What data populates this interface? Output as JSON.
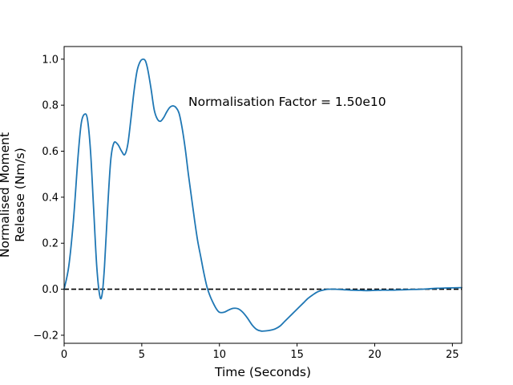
{
  "chart_data": {
    "type": "line",
    "title": "",
    "xlabel": "Time (Seconds)",
    "ylabel_lines": [
      "Normalised Moment",
      "Release (Nm/s)"
    ],
    "xlim": [
      0,
      25.6
    ],
    "ylim": [
      -0.235,
      1.055
    ],
    "xticks": [
      0,
      5,
      10,
      15,
      20,
      25
    ],
    "yticks": [
      -0.2,
      0.0,
      0.2,
      0.4,
      0.6,
      0.8,
      1.0
    ],
    "xtick_labels": [
      "0",
      "5",
      "10",
      "15",
      "20",
      "25"
    ],
    "ytick_labels": [
      "−0.2",
      "0.0",
      "0.2",
      "0.4",
      "0.6",
      "0.8",
      "1.0"
    ],
    "annotation": {
      "text": "Normalisation Factor = 1.50e10",
      "x": 8.0,
      "y": 0.8
    },
    "grid": false,
    "series": [
      {
        "color": "#1f77b4",
        "x": [
          0,
          0.3,
          0.6,
          0.9,
          1.1,
          1.3,
          1.5,
          1.7,
          1.9,
          2.1,
          2.3,
          2.45,
          2.6,
          2.8,
          3.0,
          3.2,
          3.45,
          3.7,
          3.9,
          4.1,
          4.3,
          4.5,
          4.7,
          4.9,
          5.1,
          5.25,
          5.4,
          5.6,
          5.8,
          6.0,
          6.2,
          6.4,
          6.6,
          6.8,
          7.0,
          7.2,
          7.4,
          7.6,
          7.8,
          8.0,
          8.2,
          8.4,
          8.6,
          8.8,
          9.0,
          9.2,
          9.4,
          9.6,
          9.8,
          10.0,
          10.3,
          10.6,
          10.9,
          11.2,
          11.5,
          11.8,
          12.1,
          12.4,
          12.7,
          13.0,
          13.3,
          13.6,
          13.9,
          14.2,
          14.5,
          14.8,
          15.1,
          15.4,
          15.7,
          16.0,
          16.3,
          16.6,
          17.0,
          17.5,
          18.0,
          18.5,
          19.0,
          19.5,
          20.0,
          20.5,
          21.0,
          21.5,
          22.0,
          22.5,
          23.0,
          23.5,
          24.0,
          24.5,
          25.0,
          25.6
        ],
        "y": [
          0.0,
          0.1,
          0.3,
          0.58,
          0.72,
          0.76,
          0.74,
          0.6,
          0.35,
          0.1,
          -0.03,
          -0.02,
          0.1,
          0.35,
          0.56,
          0.635,
          0.63,
          0.6,
          0.585,
          0.63,
          0.74,
          0.86,
          0.95,
          0.99,
          1.0,
          0.99,
          0.95,
          0.87,
          0.78,
          0.74,
          0.73,
          0.745,
          0.77,
          0.79,
          0.797,
          0.79,
          0.765,
          0.7,
          0.61,
          0.5,
          0.4,
          0.3,
          0.21,
          0.14,
          0.07,
          0.01,
          -0.03,
          -0.06,
          -0.085,
          -0.1,
          -0.1,
          -0.09,
          -0.083,
          -0.085,
          -0.1,
          -0.125,
          -0.155,
          -0.175,
          -0.182,
          -0.181,
          -0.178,
          -0.172,
          -0.16,
          -0.14,
          -0.12,
          -0.1,
          -0.08,
          -0.06,
          -0.04,
          -0.025,
          -0.012,
          -0.005,
          0.0,
          0.0,
          -0.002,
          -0.004,
          -0.005,
          -0.006,
          -0.005,
          -0.004,
          -0.004,
          -0.003,
          -0.002,
          -0.001,
          0.0,
          0.002,
          0.004,
          0.005,
          0.006,
          0.007
        ]
      }
    ],
    "reference_line": {
      "y": 0,
      "style": "dashed",
      "color": "#000000"
    }
  }
}
